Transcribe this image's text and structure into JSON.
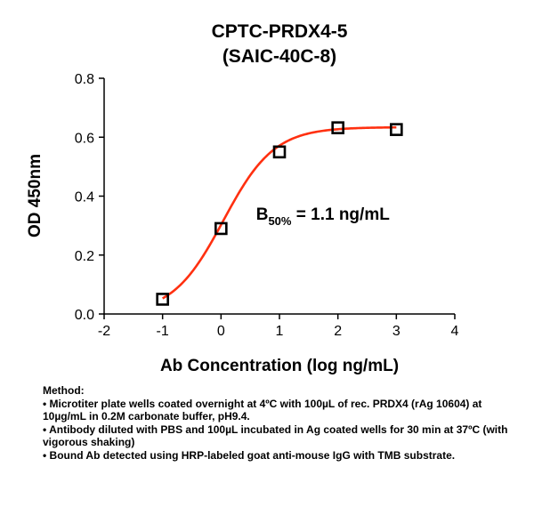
{
  "chart_data": {
    "type": "scatter",
    "title": [
      "CPTC-PRDX4-5",
      "(SAIC-40C-8)"
    ],
    "xlabel": "Ab Concentration (log ng/mL)",
    "ylabel": "OD 450nm",
    "xlim": [
      -2,
      4
    ],
    "ylim": [
      0,
      0.8
    ],
    "xticks": [
      "-2",
      "-1",
      "0",
      "1",
      "2",
      "3",
      "4"
    ],
    "yticks": [
      "0.0",
      "0.2",
      "0.4",
      "0.6",
      "0.8"
    ],
    "xtick_values": [
      -2,
      -1,
      0,
      1,
      2,
      3,
      4
    ],
    "ytick_values": [
      0,
      0.2,
      0.4,
      0.6,
      0.8
    ],
    "grid": false,
    "series": [
      {
        "marker": "open-square",
        "marker_color": "#000000",
        "x": [
          -1,
          0,
          1,
          2,
          3
        ],
        "y": [
          0.05,
          0.29,
          0.55,
          0.632,
          0.626
        ]
      }
    ],
    "fit": {
      "type": "sigmoidal",
      "color": "#ff3010",
      "bottom": 0.0,
      "top": 0.634,
      "logEC50": 0.04,
      "hill": 1.0
    },
    "annotation": {
      "main": "B",
      "subscript": "50%",
      "rest": " = 1.1 ng/mL",
      "at": [
        0.6,
        0.32
      ]
    }
  },
  "method": {
    "heading": "Method:",
    "items": [
      "• Microtiter plate wells coated overnight at 4ºC  with 100µL of rec. PRDX4 (rAg 10604) at 10µg/mL in 0.2M carbonate buffer, pH9.4.",
      "• Antibody diluted with PBS and 100µL incubated in Ag coated wells for 30 min at 37ºC (with vigorous shaking)",
      "• Bound Ab detected using HRP-labeled goat anti-mouse IgG with TMB substrate."
    ]
  }
}
